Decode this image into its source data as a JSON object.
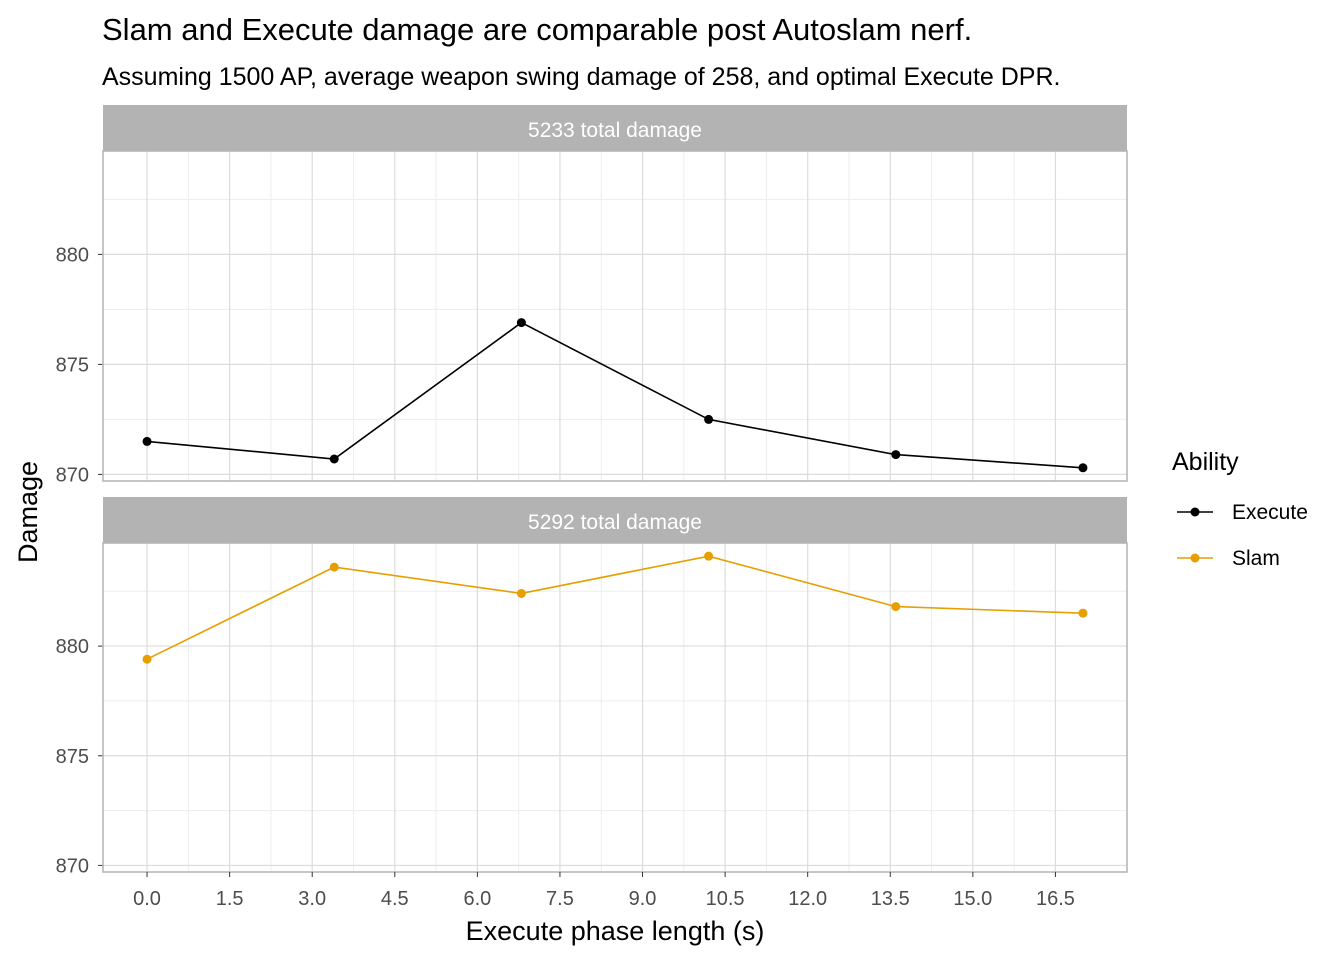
{
  "chart_data": {
    "type": "line",
    "title": "Slam and Execute damage are comparable post Autoslam nerf.",
    "subtitle": "Assuming 1500 AP, average weapon swing damage of 258, and optimal Execute DPR.",
    "xlabel": "Execute phase length (s)",
    "ylabel": "Damage",
    "x_ticks": [
      "0.0",
      "1.5",
      "3.0",
      "4.5",
      "6.0",
      "7.5",
      "9.0",
      "10.5",
      "12.0",
      "13.5",
      "15.0",
      "16.5"
    ],
    "y_ticks": [
      "870",
      "875",
      "880"
    ],
    "xlim": [
      -0.8,
      17.8
    ],
    "ylim": [
      869.7,
      884.7
    ],
    "grid": true,
    "legend": {
      "title": "Ability",
      "position": "right"
    },
    "facets": [
      {
        "label": "5233 total damage",
        "series": [
          {
            "name": "Execute",
            "color": "#000000",
            "x": [
              0.0,
              3.4,
              6.8,
              10.2,
              13.6,
              17.0
            ],
            "values": [
              871.5,
              870.7,
              876.9,
              872.5,
              870.9,
              870.3
            ]
          }
        ]
      },
      {
        "label": "5292 total damage",
        "series": [
          {
            "name": "Slam",
            "color": "#E69F00",
            "x": [
              0.0,
              3.4,
              6.8,
              10.2,
              13.6,
              17.0
            ],
            "values": [
              879.4,
              883.6,
              882.4,
              884.1,
              881.8,
              881.5
            ]
          }
        ]
      }
    ]
  }
}
